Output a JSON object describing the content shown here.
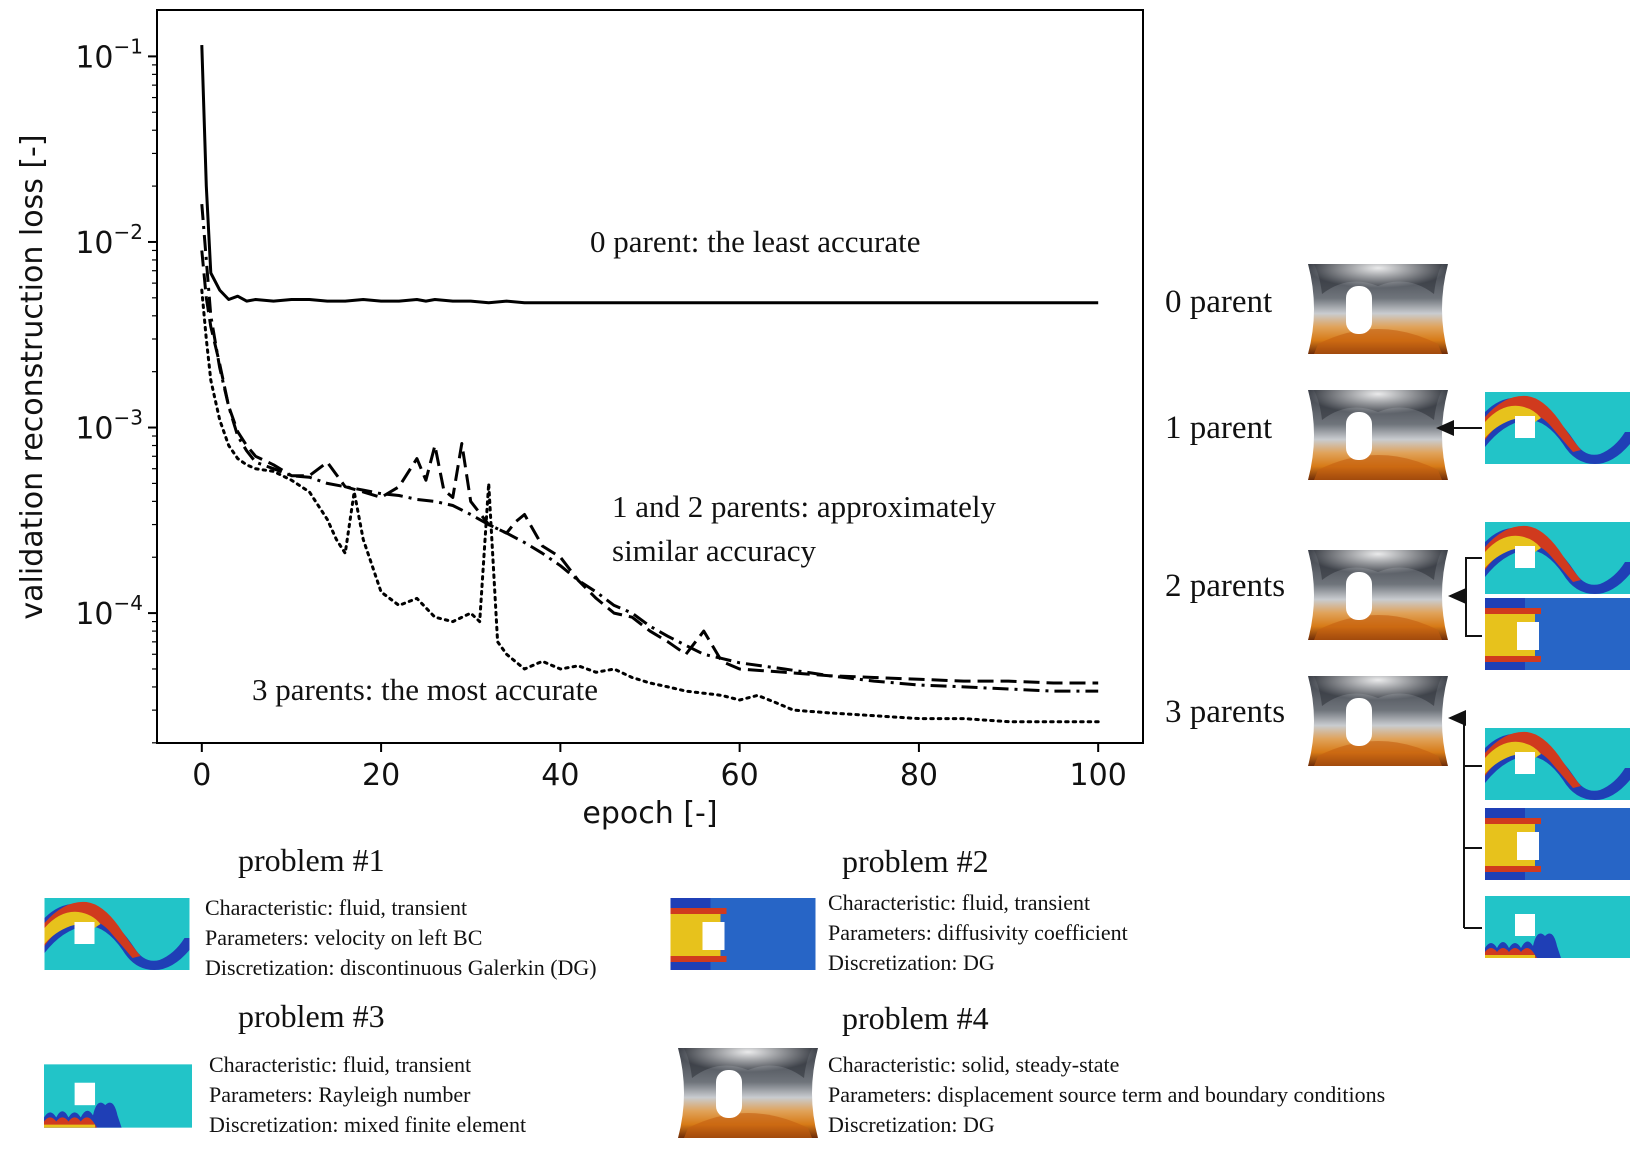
{
  "colors": {
    "fluid_background": "#22c4c8",
    "fluid_jet_red": "#d03a1e",
    "fluid_jet_yellow": "#e7c21c",
    "fluid_deep_blue": "#1f3fb6",
    "solid_dark": "#3b3f47",
    "solid_gray": "#b7bcc2",
    "solid_orange": "#d77a16",
    "solid_brown": "#6d2b08"
  },
  "chart_data": {
    "type": "line",
    "xlabel": "epoch [-]",
    "ylabel": "validation reconstruction loss [-]",
    "xlim": [
      -5,
      105
    ],
    "ylim_log10": [
      -4.7,
      -0.75
    ],
    "yscale": "log",
    "grid": false,
    "xticks": [
      0,
      20,
      40,
      60,
      80,
      100
    ],
    "xtick_labels": [
      "0",
      "20",
      "40",
      "60",
      "80",
      "100"
    ],
    "yticks_log10": [
      -1,
      -2,
      -3,
      -4
    ],
    "ytick_labels": [
      {
        "base": "10",
        "exp": "−1"
      },
      {
        "base": "10",
        "exp": "−2"
      },
      {
        "base": "10",
        "exp": "−3"
      },
      {
        "base": "10",
        "exp": "−4"
      }
    ],
    "series": [
      {
        "style": "solid",
        "x": [
          0,
          0.5,
          1,
          2,
          3,
          4,
          5,
          6,
          8,
          10,
          12,
          14,
          16,
          18,
          20,
          22,
          24,
          25,
          26,
          28,
          30,
          32,
          34,
          36,
          40,
          50,
          60,
          70,
          80,
          90,
          100
        ],
        "y": [
          0.115,
          0.02,
          0.0068,
          0.0055,
          0.0049,
          0.0051,
          0.0048,
          0.0049,
          0.0048,
          0.0049,
          0.0049,
          0.0048,
          0.0048,
          0.0049,
          0.0048,
          0.0048,
          0.0049,
          0.0048,
          0.0049,
          0.0048,
          0.0048,
          0.0047,
          0.0048,
          0.0047,
          0.0047,
          0.0047,
          0.0047,
          0.0047,
          0.0047,
          0.0047,
          0.0047
        ]
      },
      {
        "style": "dashed",
        "x": [
          0,
          0.5,
          1,
          2,
          3,
          4,
          5,
          6,
          8,
          10,
          12,
          14,
          16,
          18,
          20,
          22,
          24,
          25,
          26,
          27,
          28,
          29,
          30,
          32,
          34,
          35,
          36,
          38,
          40,
          42,
          44,
          46,
          48,
          50,
          52,
          54,
          56,
          58,
          60,
          65,
          70,
          75,
          80,
          85,
          90,
          95,
          100
        ],
        "y": [
          0.009,
          0.005,
          0.0035,
          0.0022,
          0.0013,
          0.00095,
          0.0008,
          0.0007,
          0.00063,
          0.00055,
          0.00055,
          0.00065,
          0.00048,
          0.00045,
          0.00042,
          0.00048,
          0.00068,
          0.00052,
          0.0008,
          0.00046,
          0.00042,
          0.00082,
          0.0004,
          0.0003,
          0.00027,
          0.00031,
          0.00034,
          0.00023,
          0.0002,
          0.00015,
          0.00012,
          0.0001,
          9.5e-05,
          8e-05,
          7e-05,
          6e-05,
          8e-05,
          5.5e-05,
          5e-05,
          4.8e-05,
          4.6e-05,
          4.5e-05,
          4.4e-05,
          4.3e-05,
          4.3e-05,
          4.2e-05,
          4.2e-05
        ]
      },
      {
        "style": "dashdot",
        "x": [
          0,
          0.5,
          1,
          2,
          3,
          4,
          5,
          6,
          8,
          10,
          12,
          14,
          16,
          18,
          20,
          22,
          24,
          26,
          28,
          30,
          32,
          34,
          36,
          38,
          40,
          42,
          44,
          46,
          48,
          50,
          52,
          54,
          56,
          58,
          60,
          65,
          70,
          75,
          80,
          85,
          90,
          95,
          100
        ],
        "y": [
          0.016,
          0.008,
          0.004,
          0.0021,
          0.0013,
          0.0009,
          0.00075,
          0.00065,
          0.0006,
          0.00055,
          0.00054,
          0.0005,
          0.00048,
          0.00046,
          0.00044,
          0.00043,
          0.00041,
          0.0004,
          0.00038,
          0.00034,
          0.0003,
          0.00027,
          0.00024,
          0.00021,
          0.00018,
          0.00015,
          0.00013,
          0.00011,
          0.0001,
          8.5e-05,
          7.5e-05,
          6.7e-05,
          6e-05,
          5.7e-05,
          5.4e-05,
          5e-05,
          4.6e-05,
          4.3e-05,
          4.1e-05,
          4e-05,
          3.9e-05,
          3.8e-05,
          3.8e-05
        ]
      },
      {
        "style": "dotted",
        "x": [
          0,
          0.5,
          1,
          2,
          3,
          4,
          5,
          6,
          8,
          10,
          12,
          14,
          15,
          16,
          17,
          18,
          20,
          22,
          24,
          26,
          28,
          30,
          31,
          32,
          33,
          34,
          36,
          38,
          40,
          42,
          44,
          46,
          48,
          50,
          52,
          54,
          56,
          58,
          60,
          62,
          64,
          66,
          70,
          75,
          80,
          85,
          90,
          95,
          100
        ],
        "y": [
          0.0055,
          0.003,
          0.0018,
          0.0011,
          0.0008,
          0.00068,
          0.00063,
          0.0006,
          0.00058,
          0.00052,
          0.00045,
          0.00032,
          0.00025,
          0.00021,
          0.00045,
          0.00025,
          0.00013,
          0.00011,
          0.00012,
          9.5e-05,
          9e-05,
          0.0001,
          9e-05,
          0.0005,
          7e-05,
          6e-05,
          5e-05,
          5.5e-05,
          5e-05,
          5.2e-05,
          4.8e-05,
          5e-05,
          4.5e-05,
          4.2e-05,
          4e-05,
          3.8e-05,
          3.7e-05,
          3.6e-05,
          3.4e-05,
          3.6e-05,
          3.3e-05,
          3e-05,
          2.9e-05,
          2.8e-05,
          2.7e-05,
          2.7e-05,
          2.6e-05,
          2.6e-05,
          2.6e-05
        ]
      }
    ],
    "annotations": [
      "0 parent: the least accurate",
      "1 and 2 parents: approximately",
      "similar accuracy",
      "3 parents: the most accurate"
    ]
  },
  "hierarchy": {
    "rows": [
      {
        "label": "0 parent"
      },
      {
        "label": "1 parent"
      },
      {
        "label": "2 parents"
      },
      {
        "label": "3 parents"
      }
    ]
  },
  "problems": [
    {
      "title": "problem #1",
      "characteristic": "Characteristic: fluid, transient",
      "parameters": "Parameters: velocity on left BC",
      "discretization": "Discretization: discontinuous Galerkin (DG)"
    },
    {
      "title": "problem #2",
      "characteristic": "Characteristic: fluid, transient",
      "parameters": "Parameters: diffusivity coefficient",
      "discretization": "Discretization: DG"
    },
    {
      "title": "problem #3",
      "characteristic": "Characteristic: fluid, transient",
      "parameters": "Parameters: Rayleigh number",
      "discretization": "Discretization: mixed finite element"
    },
    {
      "title": "problem #4",
      "characteristic": "Characteristic: solid, steady-state",
      "parameters": "Parameters: displacement source term and boundary conditions",
      "discretization": "Discretization: DG"
    }
  ]
}
